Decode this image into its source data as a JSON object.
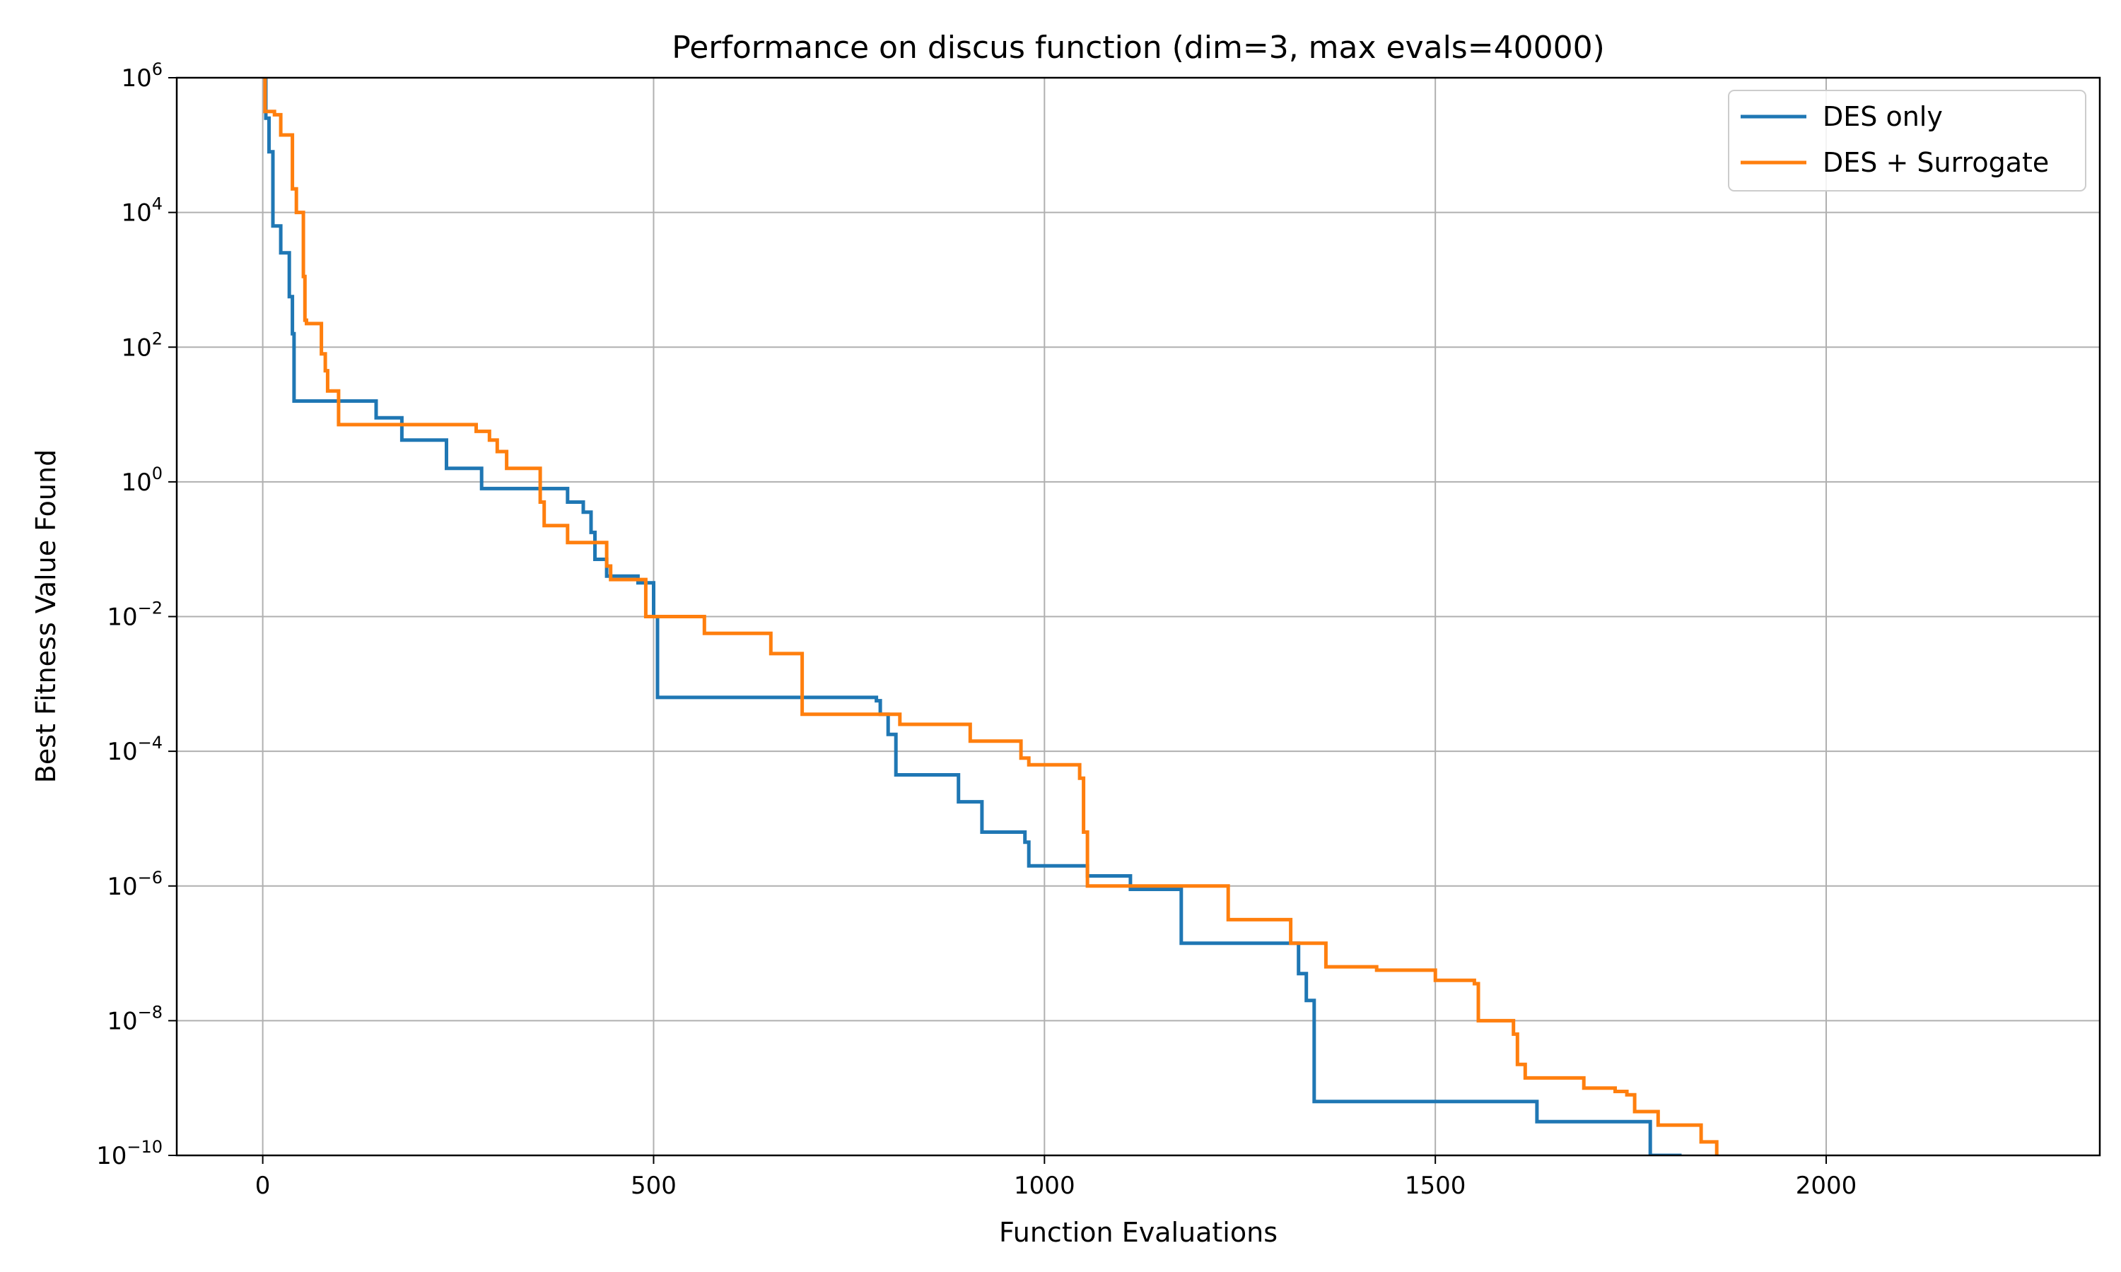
{
  "chart_data": {
    "type": "line",
    "title": "Performance on discus function (dim=3, max evals=40000)",
    "xlabel": "Function Evaluations",
    "ylabel": "Best Fitness Value Found",
    "x_range": [
      -110,
      2350
    ],
    "y_scale": "log",
    "y_range_exp": [
      -10,
      6
    ],
    "x_ticks": [
      {
        "value": 0,
        "label": "0"
      },
      {
        "value": 500,
        "label": "500"
      },
      {
        "value": 1000,
        "label": "1000"
      },
      {
        "value": 1500,
        "label": "1500"
      },
      {
        "value": 2000,
        "label": "2000"
      }
    ],
    "y_ticks": [
      {
        "exp": 6,
        "base": "10",
        "sup": "6"
      },
      {
        "exp": 4,
        "base": "10",
        "sup": "4"
      },
      {
        "exp": 2,
        "base": "10",
        "sup": "2"
      },
      {
        "exp": 0,
        "base": "10",
        "sup": "0"
      },
      {
        "exp": -2,
        "base": "10",
        "sup": "−2"
      },
      {
        "exp": -4,
        "base": "10",
        "sup": "−4"
      },
      {
        "exp": -6,
        "base": "10",
        "sup": "−6"
      },
      {
        "exp": -8,
        "base": "10",
        "sup": "−8"
      },
      {
        "exp": -10,
        "base": "10",
        "sup": "−10"
      }
    ],
    "grid": true,
    "legend_position": "top-right",
    "series": [
      {
        "name": "DES only",
        "color": "#1f77b4",
        "step": "post",
        "x": [
          0,
          4,
          8,
          13,
          23,
          34,
          38,
          40,
          145,
          178,
          235,
          280,
          390,
          410,
          420,
          425,
          440,
          480,
          500,
          505,
          785,
          790,
          800,
          810,
          890,
          920,
          975,
          980,
          1055,
          1110,
          1175,
          1325,
          1335,
          1345,
          1630,
          1775,
          1815
        ],
        "y": [
          6.2,
          5.4,
          4.9,
          3.8,
          3.4,
          2.75,
          2.2,
          1.2,
          0.95,
          0.62,
          0.2,
          -0.1,
          -0.3,
          -0.45,
          -0.75,
          -1.15,
          -1.4,
          -1.5,
          -2.0,
          -3.2,
          -3.25,
          -3.45,
          -3.75,
          -4.35,
          -4.75,
          -5.2,
          -5.35,
          -5.7,
          -5.85,
          -6.05,
          -6.85,
          -7.3,
          -7.7,
          -9.2,
          -9.5,
          -10.0,
          -10.0
        ]
      },
      {
        "name": "DES + Surrogate",
        "color": "#ff7f0e",
        "step": "post",
        "x": [
          0,
          3,
          15,
          23,
          38,
          43,
          52,
          54,
          56,
          75,
          80,
          83,
          97,
          273,
          290,
          300,
          312,
          355,
          360,
          370,
          390,
          440,
          445,
          490,
          565,
          650,
          690,
          815,
          905,
          970,
          980,
          1045,
          1050,
          1055,
          1235,
          1315,
          1360,
          1425,
          1500,
          1550,
          1555,
          1600,
          1605,
          1615,
          1690,
          1730,
          1745,
          1755,
          1785,
          1840,
          1860
        ],
        "y": [
          6.2,
          5.5,
          5.45,
          5.15,
          4.35,
          4.0,
          3.05,
          2.4,
          2.35,
          1.9,
          1.65,
          1.35,
          0.85,
          0.75,
          0.62,
          0.45,
          0.2,
          -0.3,
          -0.65,
          -0.65,
          -0.9,
          -1.25,
          -1.45,
          -2.0,
          -2.25,
          -2.55,
          -3.45,
          -3.6,
          -3.85,
          -4.1,
          -4.2,
          -4.4,
          -5.2,
          -6.0,
          -6.5,
          -6.85,
          -7.2,
          -7.25,
          -7.4,
          -7.45,
          -8.0,
          -8.2,
          -8.65,
          -8.85,
          -9.0,
          -9.05,
          -9.1,
          -9.35,
          -9.55,
          -9.8,
          -10.0
        ]
      }
    ]
  }
}
